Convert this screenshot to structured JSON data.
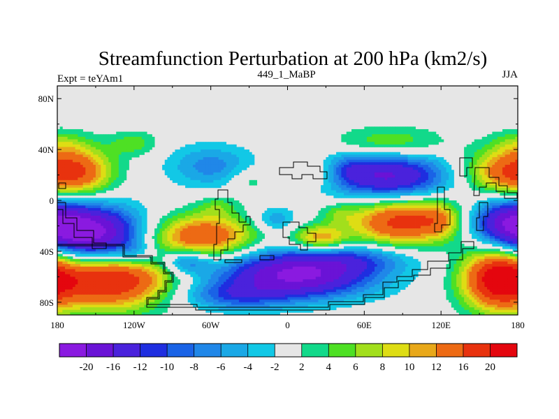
{
  "chart_data": {
    "type": "heatmap",
    "title": "Streamfunction Perturbation at 200 hPa (km2/s)",
    "left_label": "Expt = teYAm1",
    "center_label": "449_1_MaBP",
    "right_label": "JJA",
    "xlabel": "",
    "ylabel": "",
    "xlim": [
      -180,
      180
    ],
    "ylim": [
      -90,
      90
    ],
    "x_ticks": [
      {
        "value": -180,
        "label": "180"
      },
      {
        "value": -120,
        "label": "120W"
      },
      {
        "value": -60,
        "label": "60W"
      },
      {
        "value": 0,
        "label": "0"
      },
      {
        "value": 60,
        "label": "60E"
      },
      {
        "value": 120,
        "label": "120E"
      },
      {
        "value": 180,
        "label": "180"
      }
    ],
    "y_ticks": [
      {
        "value": 80,
        "label": "80N"
      },
      {
        "value": 40,
        "label": "40N"
      },
      {
        "value": 0,
        "label": "0"
      },
      {
        "value": -40,
        "label": "40S"
      },
      {
        "value": -80,
        "label": "80S"
      }
    ],
    "background_color": "#e6e6e6",
    "contour_levels": [
      -20,
      -16,
      -12,
      -10,
      -8,
      -6,
      -4,
      -2,
      2,
      4,
      6,
      8,
      10,
      12,
      16,
      20
    ],
    "colorbar_labels": [
      "-20",
      "-16",
      "-12",
      "-10",
      "-8",
      "-6",
      "-4",
      "-2",
      "2",
      "4",
      "6",
      "8",
      "10",
      "12",
      "16",
      "20"
    ],
    "colorbar_colors": [
      "#8a1ae0",
      "#6a13d6",
      "#4a22dc",
      "#1f2ee0",
      "#1a63e6",
      "#2087e8",
      "#1aa8e6",
      "#12c8e6",
      "#e6e6e6",
      "#12d98a",
      "#4ee024",
      "#a2df1c",
      "#dedd14",
      "#e8a81a",
      "#ed6a14",
      "#e8320e",
      "#e4060e"
    ],
    "field_centers": [
      {
        "lon": -148,
        "lat": -30,
        "amp": -22,
        "sx": 26,
        "sy": 17
      },
      {
        "lon": -138,
        "lat": -60,
        "amp": 23,
        "sx": 32,
        "sy": 17
      },
      {
        "lon": -163,
        "lat": 22,
        "amp": 13,
        "sx": 20,
        "sy": 14
      },
      {
        "lon": -178,
        "lat": 45,
        "amp": 4,
        "sx": 16,
        "sy": 8
      },
      {
        "lon": -65,
        "lat": -28,
        "amp": 16,
        "sx": 28,
        "sy": 12
      },
      {
        "lon": -80,
        "lat": -48,
        "amp": -10,
        "sx": 14,
        "sy": 7
      },
      {
        "lon": -118,
        "lat": -42,
        "amp": -6,
        "sx": 12,
        "sy": 7
      },
      {
        "lon": -60,
        "lat": 27,
        "amp": -7,
        "sx": 24,
        "sy": 12
      },
      {
        "lon": -120,
        "lat": 45,
        "amp": 5,
        "sx": 14,
        "sy": 7
      },
      {
        "lon": -55,
        "lat": -4,
        "amp": 4,
        "sx": 12,
        "sy": 6
      },
      {
        "lon": -30,
        "lat": 16,
        "amp": 4,
        "sx": 11,
        "sy": 7
      },
      {
        "lon": -10,
        "lat": -15,
        "amp": -6,
        "sx": 12,
        "sy": 7
      },
      {
        "lon": 25,
        "lat": -30,
        "amp": 12,
        "sx": 15,
        "sy": 7
      },
      {
        "lon": 8,
        "lat": -58,
        "amp": -21,
        "sx": 42,
        "sy": 13
      },
      {
        "lon": -42,
        "lat": -75,
        "amp": -8,
        "sx": 30,
        "sy": 8
      },
      {
        "lon": 60,
        "lat": -45,
        "amp": -6,
        "sx": 30,
        "sy": 8
      },
      {
        "lon": 25,
        "lat": 22,
        "amp": 5,
        "sx": 14,
        "sy": 8
      },
      {
        "lon": 80,
        "lat": 18,
        "amp": -17,
        "sx": 32,
        "sy": 14
      },
      {
        "lon": 45,
        "lat": 25,
        "amp": -5,
        "sx": 14,
        "sy": 8
      },
      {
        "lon": 80,
        "lat": 45,
        "amp": 7,
        "sx": 30,
        "sy": 9
      },
      {
        "lon": 88,
        "lat": -16,
        "amp": 18,
        "sx": 28,
        "sy": 14
      },
      {
        "lon": 120,
        "lat": -15,
        "amp": 6,
        "sx": 12,
        "sy": 10
      },
      {
        "lon": 40,
        "lat": -10,
        "amp": 4,
        "sx": 10,
        "sy": 6
      },
      {
        "lon": 168,
        "lat": 22,
        "amp": 12,
        "sx": 22,
        "sy": 13
      },
      {
        "lon": 175,
        "lat": -18,
        "amp": -18,
        "sx": 22,
        "sy": 14
      },
      {
        "lon": 165,
        "lat": -62,
        "amp": 22,
        "sx": 20,
        "sy": 17
      },
      {
        "lon": -180,
        "lat": 60,
        "amp": 0,
        "sx": 10,
        "sy": 10
      }
    ]
  }
}
